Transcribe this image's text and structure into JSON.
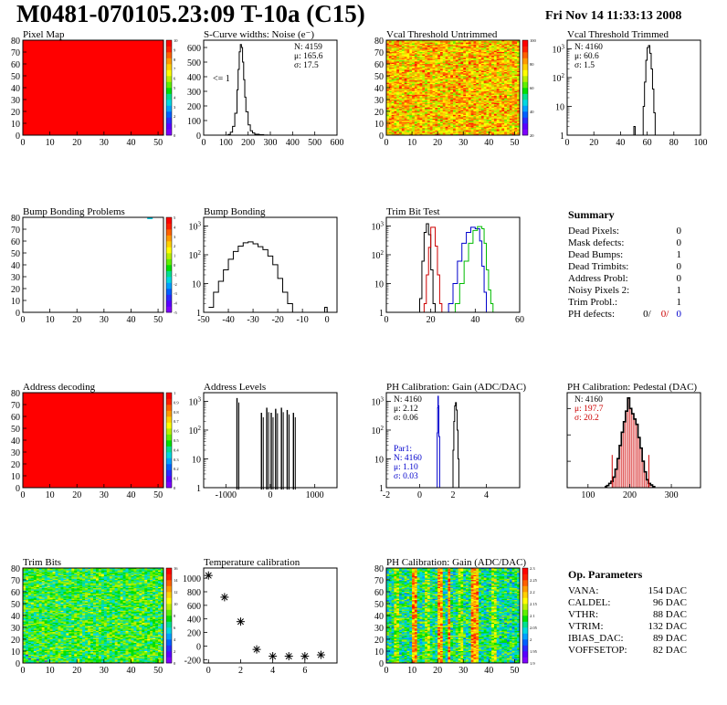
{
  "header": {
    "title": "M0481-070105.23:09 T-10a (C15)",
    "date": "Fri Nov 14 11:33:13 2008"
  },
  "summary": {
    "title": "Summary",
    "rows": [
      {
        "label": "Dead Pixels:",
        "value": "0"
      },
      {
        "label": "Mask defects:",
        "value": "0"
      },
      {
        "label": "Dead Bumps:",
        "value": "1"
      },
      {
        "label": "Dead Trimbits:",
        "value": "0"
      },
      {
        "label": "Address Probl:",
        "value": "0"
      },
      {
        "label": "Noisy Pixels 2:",
        "value": "1"
      },
      {
        "label": "Trim Probl.:",
        "value": "1"
      }
    ],
    "ph_defects": {
      "label": "PH defects:",
      "values": [
        "0/",
        "0/",
        "0"
      ],
      "colors": [
        "#000000",
        "#cc0000",
        "#0000cc"
      ]
    }
  },
  "op_parameters": {
    "title": "Op. Parameters",
    "rows": [
      {
        "label": "VANA:",
        "value": "154 DAC"
      },
      {
        "label": "CALDEL:",
        "value": "96 DAC"
      },
      {
        "label": "VTHR:",
        "value": "88 DAC"
      },
      {
        "label": "VTRIM:",
        "value": "132 DAC"
      },
      {
        "label": "IBIAS_DAC:",
        "value": "89 DAC"
      },
      {
        "label": "VOFFSETOP:",
        "value": "82 DAC"
      }
    ]
  },
  "chart_data": [
    {
      "id": "pixel-map",
      "type": "heatmap",
      "title": "Pixel Map",
      "xlim": [
        0,
        52
      ],
      "ylim": [
        0,
        80
      ],
      "xticks": [
        "0",
        "10",
        "20",
        "30",
        "40",
        "50"
      ],
      "yticks": [
        "0",
        "10",
        "20",
        "30",
        "40",
        "50",
        "60",
        "70",
        "80"
      ],
      "fill": "uniform",
      "zlim": [
        0,
        10
      ],
      "zticks": [
        "10",
        "9",
        "8",
        "7",
        "6",
        "5",
        "4",
        "3",
        "2",
        "1",
        "0"
      ]
    },
    {
      "id": "scurve",
      "type": "line",
      "title": "S-Curve widths: Noise (e⁻)",
      "xlim": [
        0,
        600
      ],
      "ylim": [
        0,
        650
      ],
      "xticks": [
        "0",
        "100",
        "200",
        "300",
        "400",
        "500",
        "600"
      ],
      "yticks": [
        "0",
        "100",
        "200",
        "300",
        "400",
        "500",
        "600"
      ],
      "stats": [
        "N: 4159",
        "μ: 165.6",
        "σ: 17.5"
      ],
      "annotation": "<= 1",
      "series": [
        {
          "x": [
            100,
            110,
            120,
            130,
            140,
            150,
            155,
            160,
            165,
            170,
            175,
            180,
            185,
            190,
            200,
            210,
            220,
            230,
            250,
            270,
            290
          ],
          "values": [
            0,
            5,
            20,
            60,
            150,
            310,
            450,
            570,
            620,
            600,
            500,
            380,
            260,
            160,
            70,
            30,
            15,
            6,
            3,
            1,
            0
          ]
        }
      ]
    },
    {
      "id": "vcal-untrimmed",
      "type": "heatmap",
      "title": "Vcal Threshold Untrimmed",
      "xlim": [
        0,
        52
      ],
      "ylim": [
        0,
        80
      ],
      "xticks": [
        "0",
        "10",
        "20",
        "30",
        "40",
        "50"
      ],
      "yticks": [
        "0",
        "10",
        "20",
        "30",
        "40",
        "50",
        "60",
        "70",
        "80"
      ],
      "fill": "noise-high",
      "zticks": [
        "100",
        "80",
        "60",
        "40",
        "20"
      ]
    },
    {
      "id": "vcal-trimmed",
      "type": "line",
      "title": "Vcal Threshold Trimmed",
      "xlim": [
        0,
        100
      ],
      "log": true,
      "yexp": [
        0,
        3.3
      ],
      "xticks": [
        "0",
        "20",
        "40",
        "60",
        "80",
        "100"
      ],
      "stats": [
        "N: 4160",
        "μ: 60.6",
        "σ: 1.5"
      ],
      "series": [
        {
          "x": [
            49,
            50,
            51,
            55,
            56,
            57,
            58,
            59,
            60,
            61,
            62,
            63,
            64,
            65,
            66
          ],
          "values": [
            0,
            2,
            0,
            0,
            1,
            10,
            70,
            400,
            1100,
            1300,
            700,
            200,
            40,
            6,
            0
          ]
        }
      ]
    },
    {
      "id": "bump-problems",
      "type": "heatmap",
      "title": "Bump Bonding Problems",
      "xlim": [
        0,
        52
      ],
      "ylim": [
        0,
        80
      ],
      "xticks": [
        "0",
        "10",
        "20",
        "30",
        "40",
        "50"
      ],
      "yticks": [
        "0",
        "10",
        "20",
        "30",
        "40",
        "50",
        "60",
        "70",
        "80"
      ],
      "fill": "empty",
      "zticks": [
        "5",
        "4",
        "3",
        "2",
        "1",
        "0",
        "-1",
        "-2",
        "-3",
        "-4",
        "-5"
      ],
      "marks": [
        [
          46,
          80
        ]
      ]
    },
    {
      "id": "bump-bonding",
      "type": "line",
      "title": "Bump Bonding",
      "xlim": [
        -50,
        4
      ],
      "log": true,
      "yexp": [
        0,
        3.3
      ],
      "xticks": [
        "-50",
        "-40",
        "-30",
        "-20",
        "-10",
        "0"
      ],
      "series": [
        {
          "x": [
            -48,
            -46,
            -44,
            -42,
            -40,
            -38,
            -36,
            -34,
            -32,
            -30,
            -28,
            -26,
            -24,
            -22,
            -20,
            -18,
            -16,
            -14,
            -1,
            0
          ],
          "values": [
            1.5,
            5,
            12,
            30,
            70,
            130,
            200,
            260,
            280,
            240,
            190,
            150,
            90,
            45,
            15,
            5,
            2,
            0,
            1.5,
            0
          ]
        }
      ]
    },
    {
      "id": "trim-bit",
      "type": "line",
      "title": "Trim Bit Test",
      "xlim": [
        0,
        60
      ],
      "log": true,
      "yexp": [
        0,
        3.3
      ],
      "xticks": [
        "0",
        "20",
        "40",
        "60"
      ],
      "series": [
        {
          "color": "#000000",
          "x": [
            14,
            15,
            16,
            17,
            18,
            19,
            20,
            21,
            22
          ],
          "values": [
            0,
            3,
            60,
            600,
            1200,
            500,
            30,
            2,
            0
          ]
        },
        {
          "color": "#cc0000",
          "x": [
            16,
            17,
            18,
            19,
            20,
            21,
            22,
            23,
            24,
            25
          ],
          "values": [
            0,
            2,
            20,
            180,
            900,
            900,
            200,
            20,
            2,
            0
          ]
        },
        {
          "color": "#0000cc",
          "x": [
            27,
            28,
            30,
            32,
            34,
            36,
            38,
            40,
            42,
            43,
            44,
            45
          ],
          "values": [
            0,
            2,
            10,
            60,
            250,
            600,
            900,
            800,
            300,
            40,
            5,
            0
          ]
        },
        {
          "color": "#00bb00",
          "x": [
            30,
            31,
            33,
            35,
            37,
            39,
            41,
            43,
            44,
            45,
            46,
            47,
            48
          ],
          "values": [
            0,
            2,
            10,
            60,
            250,
            700,
            950,
            800,
            250,
            30,
            6,
            2,
            0
          ]
        }
      ]
    },
    {
      "id": "address-decoding",
      "type": "heatmap",
      "title": "Address decoding",
      "xlim": [
        0,
        52
      ],
      "ylim": [
        0,
        80
      ],
      "xticks": [
        "0",
        "10",
        "20",
        "30",
        "40",
        "50"
      ],
      "yticks": [
        "0",
        "10",
        "20",
        "30",
        "40",
        "50",
        "60",
        "70",
        "80"
      ],
      "fill": "uniform",
      "zticks": [
        "1",
        "0.9",
        "0.8",
        "0.7",
        "0.6",
        "0.5",
        "0.4",
        "0.3",
        "0.2",
        "0.1",
        "0"
      ]
    },
    {
      "id": "address-levels",
      "type": "line",
      "title": "Address Levels",
      "xlim": [
        -1500,
        1500
      ],
      "log": true,
      "yexp": [
        0,
        3.3
      ],
      "xticks": [
        "-1000",
        "0",
        "1000"
      ],
      "series": [
        {
          "spikes": [
            [
              -750,
              1300
            ],
            [
              -200,
              400
            ],
            [
              -80,
              600
            ],
            [
              20,
              400
            ],
            [
              120,
              550
            ],
            [
              250,
              600
            ],
            [
              380,
              500
            ],
            [
              520,
              400
            ]
          ]
        }
      ]
    },
    {
      "id": "ph-gain",
      "type": "line",
      "title": "PH Calibration: Gain (ADC/DAC)",
      "xlim": [
        -2,
        6
      ],
      "log": true,
      "yexp": [
        0,
        3.3
      ],
      "xticks": [
        "-2",
        "0",
        "2",
        "4"
      ],
      "stats": [
        "N: 4160",
        "μ: 2.12",
        "σ: 0.06"
      ],
      "stats2": [
        "Par1:",
        "N: 4160",
        "μ: 1.10",
        "σ: 0.03"
      ],
      "series": [
        {
          "color": "#000000",
          "x": [
            1.9,
            2.0,
            2.05,
            2.1,
            2.15,
            2.2,
            2.25,
            2.3,
            2.35
          ],
          "values": [
            0,
            20,
            200,
            700,
            900,
            500,
            100,
            10,
            0
          ]
        },
        {
          "color": "#0000cc",
          "x": [
            1.0,
            1.05,
            1.08,
            1.1,
            1.12,
            1.15,
            1.2
          ],
          "values": [
            0,
            80,
            600,
            1500,
            700,
            60,
            0
          ]
        }
      ]
    },
    {
      "id": "ph-pedestal",
      "type": "line",
      "title": "PH Calibration: Pedestal (DAC)",
      "xlim": [
        50,
        370
      ],
      "ylim": [
        0,
        180
      ],
      "xticks": [
        "100",
        "200",
        "300"
      ],
      "stats": [
        "N: 4160",
        "μ: 197.7",
        "σ: 20.2"
      ],
      "cuts": [
        158,
        246
      ],
      "series": [
        {
          "x": [
            140,
            145,
            150,
            155,
            160,
            165,
            170,
            175,
            180,
            185,
            190,
            195,
            200,
            205,
            210,
            215,
            220,
            225,
            230,
            235,
            240,
            245,
            250,
            255,
            260
          ],
          "values": [
            2,
            4,
            8,
            12,
            20,
            35,
            55,
            80,
            105,
            125,
            145,
            170,
            150,
            140,
            130,
            120,
            95,
            75,
            50,
            30,
            15,
            8,
            5,
            2,
            0
          ]
        }
      ]
    },
    {
      "id": "trim-bits",
      "type": "heatmap",
      "title": "Trim Bits",
      "xlim": [
        0,
        52
      ],
      "ylim": [
        0,
        80
      ],
      "xticks": [
        "0",
        "10",
        "20",
        "30",
        "40",
        "50"
      ],
      "yticks": [
        "0",
        "10",
        "20",
        "30",
        "40",
        "50",
        "60",
        "70",
        "80"
      ],
      "fill": "noise-mid",
      "zticks": [
        "16",
        "14",
        "12",
        "10",
        "8",
        "6",
        "4",
        "2",
        "0"
      ]
    },
    {
      "id": "temperature",
      "type": "scatter",
      "title": "Temperature calibration",
      "xlim": [
        -0.3,
        8
      ],
      "ylim": [
        -250,
        1150
      ],
      "xticks": [
        "0",
        "2",
        "4",
        "6"
      ],
      "yticks": [
        "1000",
        "800",
        "600",
        "400",
        "200",
        "0",
        "-200"
      ],
      "x": [
        0,
        1,
        2,
        3,
        4,
        5,
        6,
        7
      ],
      "values": [
        1040,
        720,
        360,
        -50,
        -150,
        -150,
        -150,
        -130
      ]
    },
    {
      "id": "ph-gain-map",
      "type": "heatmap",
      "title": "PH Calibration: Gain (ADC/DAC)",
      "xlim": [
        0,
        52
      ],
      "ylim": [
        0,
        80
      ],
      "xticks": [
        "0",
        "10",
        "20",
        "30",
        "40",
        "50"
      ],
      "yticks": [
        "0",
        "10",
        "20",
        "30",
        "40",
        "50",
        "60",
        "70",
        "80"
      ],
      "fill": "columns",
      "zticks": [
        "2.3",
        "2.25",
        "2.2",
        "2.15",
        "2.1",
        "2.05",
        "2",
        "1.95",
        "1.9"
      ]
    }
  ]
}
